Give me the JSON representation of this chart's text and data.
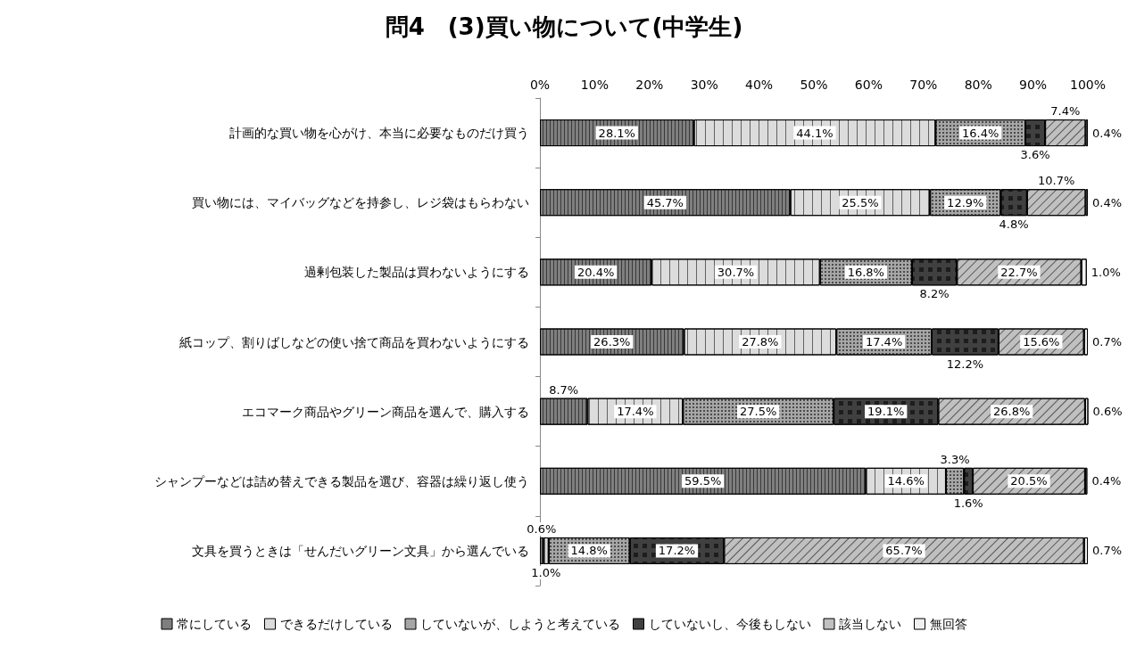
{
  "chart_data": {
    "type": "bar",
    "title": "問4　(3)買い物について(中学生)",
    "orientation": "horizontal",
    "stacked": true,
    "legend": "bottom",
    "grid": false,
    "data_labels": true,
    "categories": [
      "計画的な買い物を心がけ、本当に必要なものだけ買う",
      "買い物には、マイバッグなどを持参し、レジ袋はもらわない",
      "過剰包装した製品は買わないようにする",
      "紙コップ、割りばしなどの使い捨て商品を買わないようにする",
      "エコマーク商品やグリーン商品を選んで、購入する",
      "シャンプーなどは詰め替えできる製品を選び、容器は繰り返し使う",
      "文具を買うときは「せんだいグリーン文具」から選んでいる"
    ],
    "xlim": [
      0,
      100
    ],
    "xticks": [
      {
        "value": 0,
        "label": "0%"
      },
      {
        "value": 10,
        "label": "10%"
      },
      {
        "value": 20,
        "label": "20%"
      },
      {
        "value": 30,
        "label": "30%"
      },
      {
        "value": 40,
        "label": "40%"
      },
      {
        "value": 50,
        "label": "50%"
      },
      {
        "value": 60,
        "label": "60%"
      },
      {
        "value": 70,
        "label": "70%"
      },
      {
        "value": 80,
        "label": "80%"
      },
      {
        "value": 90,
        "label": "90%"
      },
      {
        "value": 100,
        "label": "100%"
      }
    ],
    "series": [
      {
        "name": "常にしている",
        "color": "#7f7f7f",
        "values": [
          28.1,
          45.7,
          20.4,
          26.3,
          8.7,
          59.5,
          0.6
        ],
        "value_labels": [
          "28.1%",
          "45.7%",
          "20.4%",
          "26.3%",
          "8.7%",
          "59.5%",
          "0.6%"
        ]
      },
      {
        "name": "できるだけしている",
        "color": "#dcdcdc",
        "values": [
          44.1,
          25.5,
          30.7,
          27.8,
          17.4,
          14.6,
          1.0
        ],
        "value_labels": [
          "44.1%",
          "25.5%",
          "30.7%",
          "27.8%",
          "17.4%",
          "14.6%",
          "1.0%"
        ]
      },
      {
        "name": "していないが、しようと考えている",
        "color": "#a6a6a6",
        "values": [
          16.4,
          12.9,
          16.8,
          17.4,
          27.5,
          3.3,
          14.8
        ],
        "value_labels": [
          "16.4%",
          "12.9%",
          "16.8%",
          "17.4%",
          "27.5%",
          "3.3%",
          "14.8%"
        ]
      },
      {
        "name": "していないし、今後もしない",
        "color": "#404040",
        "values": [
          3.6,
          4.8,
          8.2,
          12.2,
          19.1,
          1.6,
          17.2
        ],
        "value_labels": [
          "3.6%",
          "4.8%",
          "8.2%",
          "12.2%",
          "19.1%",
          "1.6%",
          "17.2%"
        ]
      },
      {
        "name": "該当しない",
        "color": "#c0c0c0",
        "values": [
          7.4,
          10.7,
          22.7,
          15.6,
          26.8,
          20.5,
          65.7
        ],
        "value_labels": [
          "7.4%",
          "10.7%",
          "22.7%",
          "15.6%",
          "26.8%",
          "20.5%",
          "65.7%"
        ]
      },
      {
        "name": "無回答",
        "color": "#f0f0f0",
        "values": [
          0.4,
          0.4,
          1.0,
          0.7,
          0.6,
          0.4,
          0.7
        ],
        "value_labels": [
          "0.4%",
          "0.4%",
          "1.0%",
          "0.7%",
          "0.6%",
          "0.4%",
          "0.7%"
        ]
      }
    ]
  }
}
